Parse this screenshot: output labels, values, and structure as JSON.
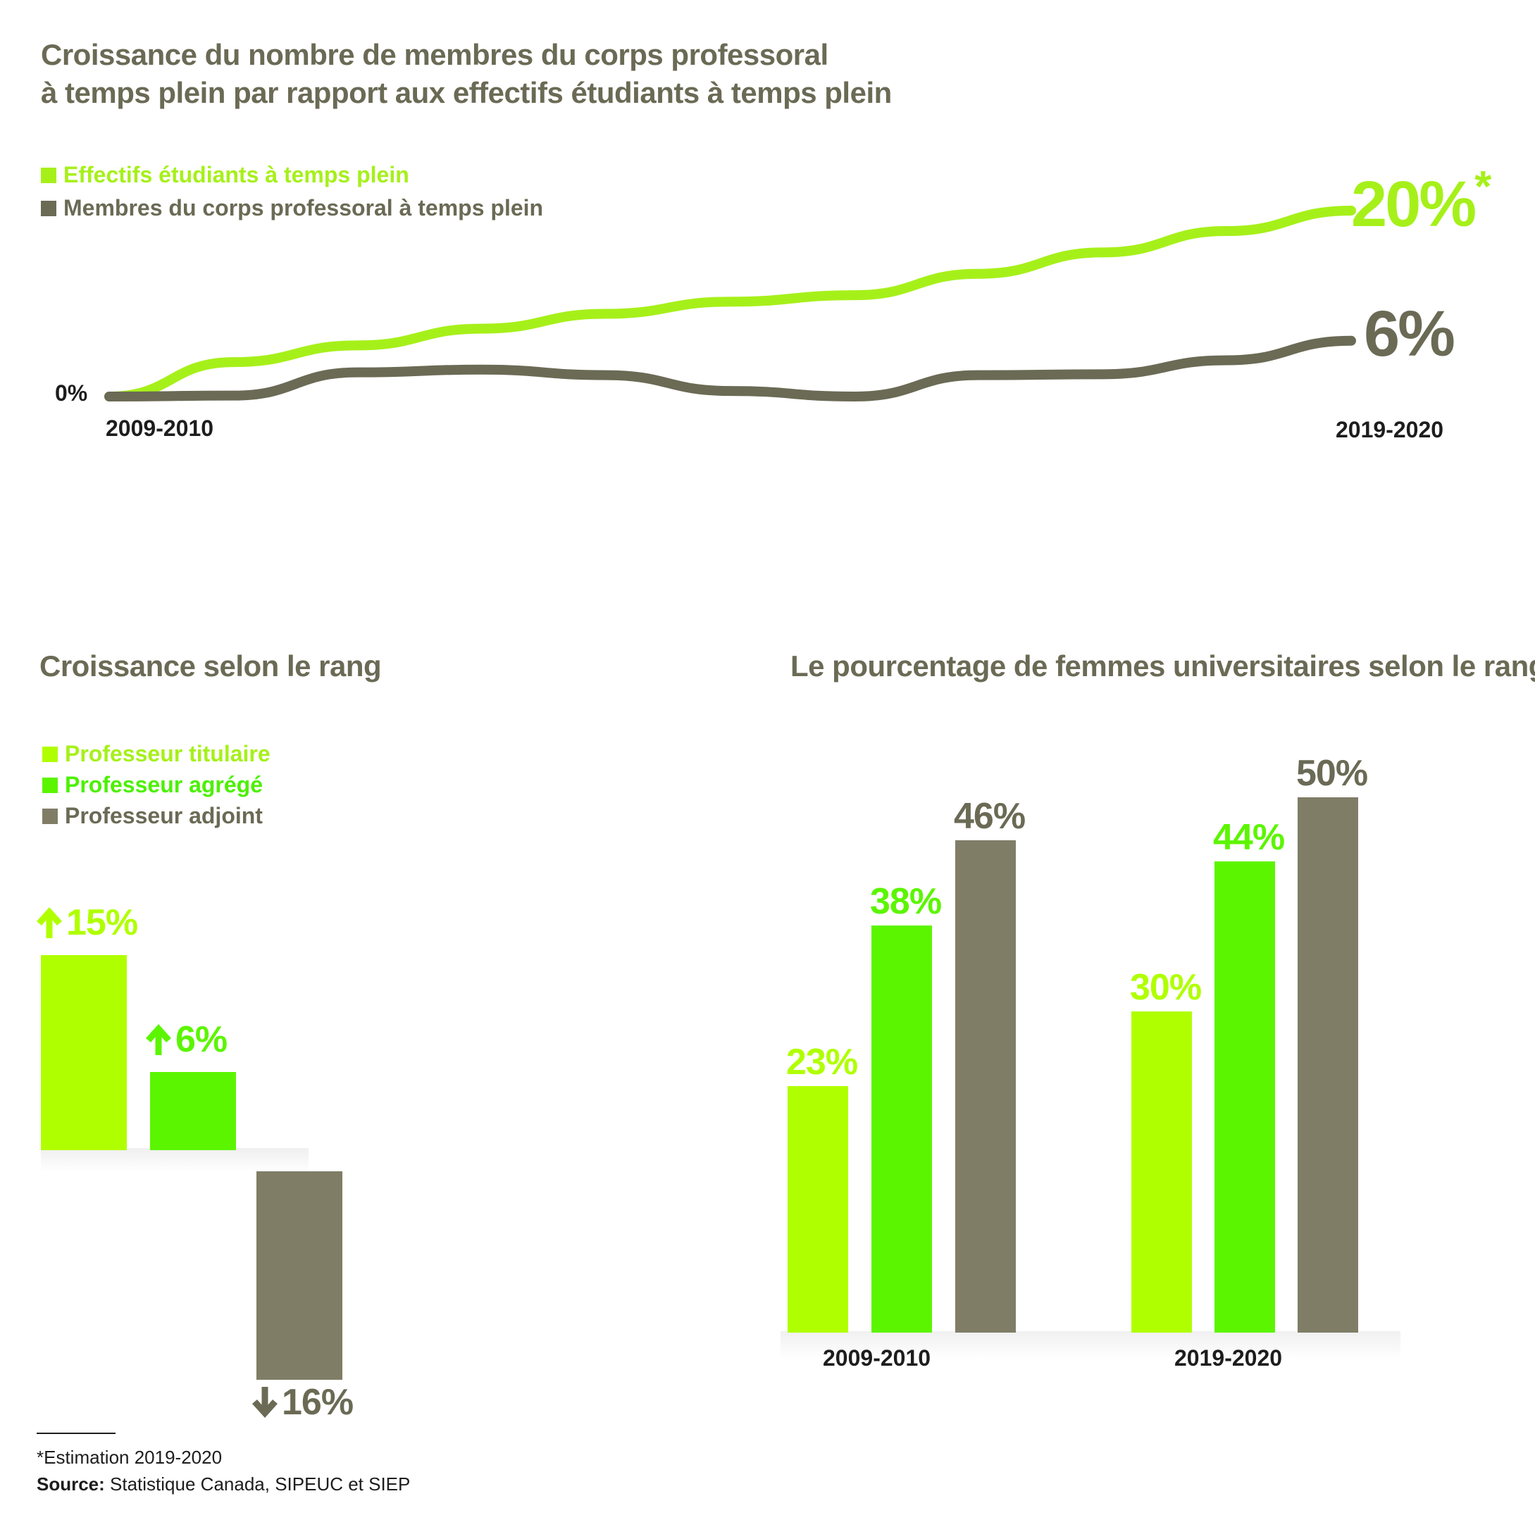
{
  "colors": {
    "gray": "#6b6a55",
    "bar_gray": "#807d67",
    "line_green": "#a6f01a",
    "lime": "#b0ff00",
    "green": "#5cf500",
    "dark_text": "#1d1d1d"
  },
  "icons": {
    "up": "arrow-up-icon",
    "down": "arrow-down-icon"
  },
  "chart_data": [
    {
      "type": "line",
      "title": "Croissance du nombre de membres du corps professoral",
      "title_line2": "à temps plein par rapport aux effectifs étudiants à temps plein",
      "x_start_label": "2009-2010",
      "x_end_label": "2019-2020",
      "y_zero_label": "0%",
      "x": [
        2009,
        2010,
        2011,
        2012,
        2013,
        2014,
        2015,
        2016,
        2017,
        2018,
        2019
      ],
      "series": [
        {
          "name": "Effectifs étudiants à temps plein",
          "color": "#a6f01a",
          "values": [
            0,
            3.7,
            5.5,
            7.3,
            8.9,
            10.2,
            10.9,
            13.2,
            15.5,
            17.8,
            20
          ],
          "end_label": "20%",
          "end_mark": "*"
        },
        {
          "name": "Membres du corps professoral à temps plein",
          "color": "#6b6a55",
          "values": [
            0,
            0.1,
            2.6,
            2.9,
            2.3,
            0.6,
            0,
            2.3,
            2.4,
            3.9,
            6
          ],
          "end_label": "6%"
        }
      ]
    },
    {
      "type": "bar",
      "title": "Croissance selon le rang",
      "categories": [
        "Professeur titulaire",
        "Professeur agrégé",
        "Professeur adjoint"
      ],
      "values": [
        15,
        6,
        -16
      ],
      "value_labels": [
        "15%",
        "6%",
        "16%"
      ],
      "colors": [
        "#b0ff00",
        "#5cf500",
        "#807d67"
      ],
      "legend": [
        {
          "label": "Professeur titulaire",
          "color": "#b0ff00"
        },
        {
          "label": "Professeur agrégé",
          "color": "#5cf500"
        },
        {
          "label": "Professeur adjoint",
          "color": "#807d67"
        }
      ]
    },
    {
      "type": "bar",
      "title": "Le pourcentage de femmes universitaires selon le rang",
      "categories": [
        "2009-2010",
        "2019-2020"
      ],
      "series": [
        {
          "name": "Professeur titulaire",
          "values": [
            23,
            30
          ],
          "labels": [
            "23%",
            "30%"
          ],
          "color": "#b0ff00"
        },
        {
          "name": "Professeur agrégé",
          "values": [
            38,
            44
          ],
          "labels": [
            "38%",
            "44%"
          ],
          "color": "#5cf500"
        },
        {
          "name": "Professeur adjoint",
          "values": [
            46,
            50
          ],
          "labels": [
            "46%",
            "50%"
          ],
          "color": "#807d67"
        }
      ],
      "ylim": [
        0,
        50
      ]
    }
  ],
  "footnote": {
    "estimate": "*Estimation 2019-2020",
    "source_label": "Source:",
    "source_text": " Statistique Canada, SIPEUC et SIEP"
  }
}
